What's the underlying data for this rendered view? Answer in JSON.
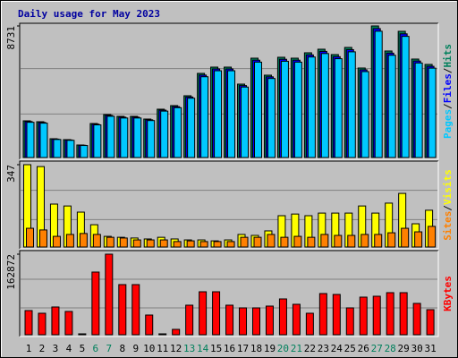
{
  "chart_data": [
    {
      "type": "bar",
      "title": "Daily usage for May 2023",
      "title_color": "#0000a0",
      "ylim": [
        0,
        8731
      ],
      "yticks": [
        8731
      ],
      "legend_separator": "/",
      "series": [
        {
          "name": "Hits",
          "color": "#00805c",
          "values": [
            2435,
            2376,
            1247,
            1188,
            832,
            2257,
            2851,
            2732,
            2732,
            2554,
            3208,
            3445,
            4099,
            5584,
            5999,
            5999,
            4871,
            6593,
            5465,
            6653,
            6593,
            6950,
            7187,
            6831,
            7306,
            5940,
            8731,
            7069,
            8375,
            6534,
            6178
          ]
        },
        {
          "name": "Files",
          "color": "#0000ff",
          "values": [
            2386,
            2328,
            1222,
            1164,
            815,
            2212,
            2794,
            2677,
            2677,
            2503,
            3144,
            3376,
            4017,
            5472,
            5879,
            5879,
            4774,
            6461,
            5356,
            6520,
            6461,
            6811,
            7043,
            6694,
            7160,
            5821,
            8556,
            6928,
            8208,
            6403,
            6054
          ]
        },
        {
          "name": "Pages",
          "color": "#00c8ff",
          "values": [
            2338,
            2281,
            1197,
            1140,
            799,
            2167,
            2737,
            2623,
            2623,
            2452,
            3080,
            3307,
            3935,
            5361,
            5759,
            5759,
            4676,
            6329,
            5246,
            6387,
            6329,
            6672,
            6900,
            6558,
            7014,
            5702,
            8382,
            6786,
            8040,
            6273,
            5931
          ]
        }
      ]
    },
    {
      "type": "bar",
      "ylim": [
        0,
        347
      ],
      "yticks": [
        347
      ],
      "legend_separator": "/",
      "series": [
        {
          "name": "Visits",
          "color": "#ffff00",
          "values": [
            347,
            339,
            181,
            173,
            147,
            94,
            45,
            41,
            38,
            34,
            41,
            34,
            30,
            30,
            26,
            30,
            53,
            49,
            68,
            132,
            139,
            132,
            143,
            143,
            143,
            173,
            143,
            185,
            226,
            98,
            155
          ]
        },
        {
          "name": "Sites",
          "color": "#ff8000",
          "values": [
            79,
            72,
            45,
            53,
            57,
            53,
            41,
            38,
            30,
            30,
            30,
            23,
            26,
            23,
            23,
            23,
            41,
            41,
            53,
            41,
            45,
            41,
            53,
            49,
            49,
            53,
            53,
            60,
            79,
            64,
            87
          ]
        }
      ]
    },
    {
      "type": "bar",
      "ylim": [
        0,
        162872
      ],
      "yticks": [
        162872
      ],
      "categories": [
        "1",
        "2",
        "3",
        "4",
        "5",
        "6",
        "7",
        "8",
        "9",
        "10",
        "11",
        "12",
        "13",
        "14",
        "15",
        "16",
        "17",
        "18",
        "19",
        "20",
        "21",
        "22",
        "23",
        "24",
        "25",
        "26",
        "27",
        "28",
        "29",
        "30",
        "31"
      ],
      "category_colors": [
        "#000000",
        "#000000",
        "#000000",
        "#000000",
        "#000000",
        "#00805c",
        "#00805c",
        "#000000",
        "#000000",
        "#000000",
        "#000000",
        "#000000",
        "#00805c",
        "#00805c",
        "#000000",
        "#000000",
        "#000000",
        "#000000",
        "#000000",
        "#00805c",
        "#00805c",
        "#000000",
        "#000000",
        "#000000",
        "#000000",
        "#000000",
        "#00805c",
        "#00805c",
        "#000000",
        "#000000",
        "#000000"
      ],
      "series": [
        {
          "name": "KBytes",
          "color": "#ff0000",
          "values": [
            48870,
            43435,
            56110,
            47060,
            1810,
            126700,
            162872,
            101360,
            101360,
            39820,
            1810,
            10860,
            59730,
            86880,
            86880,
            59730,
            54300,
            54300,
            57920,
            72400,
            61540,
            43440,
            83260,
            81450,
            54300,
            76020,
            77830,
            85070,
            85070,
            63350,
            50680
          ]
        }
      ]
    }
  ]
}
